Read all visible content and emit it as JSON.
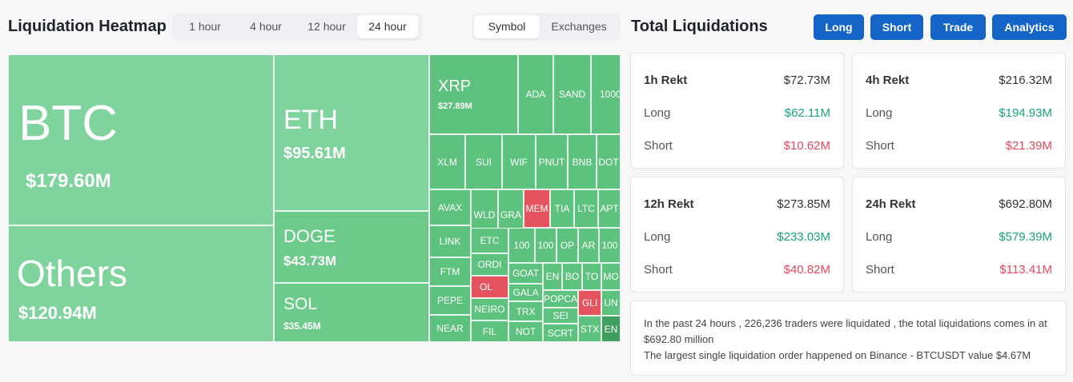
{
  "heatmap": {
    "title": "Liquidation Heatmap",
    "time_tabs": [
      "1 hour",
      "4 hour",
      "12 hour",
      "24 hour"
    ],
    "active_time_tab": "24 hour",
    "type_tabs": [
      "Symbol",
      "Exchanges"
    ],
    "active_type_tab": "Symbol",
    "cells": {
      "btc": {
        "symbol": "BTC",
        "value": "$179.60M"
      },
      "others": {
        "symbol": "Others",
        "value": "$120.94M"
      },
      "eth": {
        "symbol": "ETH",
        "value": "$95.61M"
      },
      "doge": {
        "symbol": "DOGE",
        "value": "$43.73M"
      },
      "sol": {
        "symbol": "SOL",
        "value": "$35.45M"
      },
      "xrp": {
        "symbol": "XRP",
        "value": "$27.89M"
      },
      "small": [
        "ADA",
        "SAND",
        "1000",
        "XLM",
        "SUI",
        "WIF",
        "PNUT",
        "BNB",
        "DOT",
        "AVAX",
        "WLD",
        "GRA",
        "MEM",
        "TIA",
        "LTC",
        "APT",
        "LINK",
        "ETC",
        "100",
        "100",
        "OP",
        "AR",
        "100",
        "FTM",
        "ORDI",
        "GOAT",
        "EN",
        "BO",
        "TO",
        "MO",
        "PEPE",
        "OL",
        "GALA",
        "POPCA",
        "GLI",
        "UN",
        "NEAR",
        "NEIRO",
        "TRX",
        "SEI",
        "FIL",
        "NOT",
        "SCRT",
        "STX",
        "EN"
      ]
    }
  },
  "totals": {
    "title": "Total Liquidations",
    "buttons": [
      "Long",
      "Short",
      "Trade",
      "Analytics"
    ],
    "cards": [
      {
        "label": "1h Rekt",
        "total": "$72.73M",
        "long_label": "Long",
        "long": "$62.11M",
        "short_label": "Short",
        "short": "$10.62M"
      },
      {
        "label": "4h Rekt",
        "total": "$216.32M",
        "long_label": "Long",
        "long": "$194.93M",
        "short_label": "Short",
        "short": "$21.39M"
      },
      {
        "label": "12h Rekt",
        "total": "$273.85M",
        "long_label": "Long",
        "long": "$233.03M",
        "short_label": "Short",
        "short": "$40.82M"
      },
      {
        "label": "24h Rekt",
        "total": "$692.80M",
        "long_label": "Long",
        "long": "$579.39M",
        "short_label": "Short",
        "short": "$113.41M"
      }
    ],
    "summary_line1": "In the past 24 hours , 226,236 traders were liquidated , the total liquidations comes in at $692.80 million",
    "summary_line2": "The largest single liquidation order happened on Binance - BTCUSDT value $4.67M"
  },
  "colors": {
    "long": "#1aa37a",
    "short": "#e5485a",
    "accent": "#1565c8"
  }
}
